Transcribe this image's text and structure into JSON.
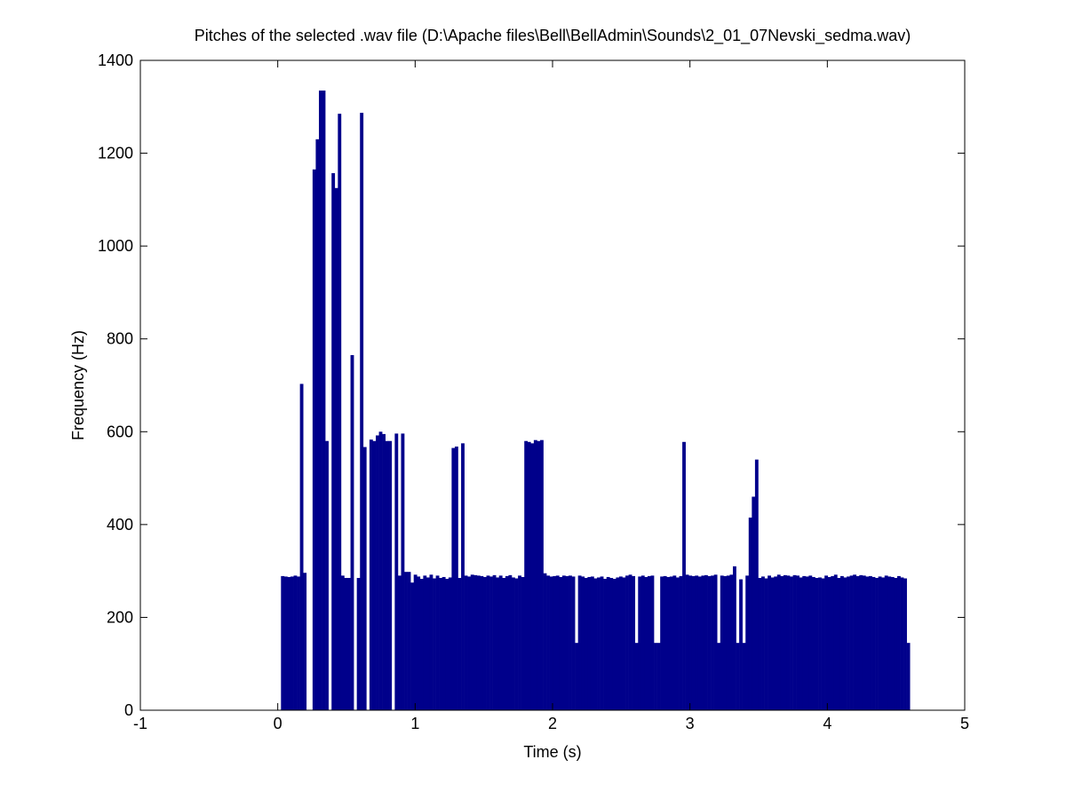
{
  "chart_data": {
    "type": "bar",
    "title": "Pitches of the selected .wav file (D:\\Apache files\\Bell\\BellAdmin\\Sounds\\2_01_07Nevski_sedma.wav)",
    "x_label": "Time (s)",
    "y_label": "Frequency (Hz)",
    "color": "#00008b",
    "xlim": [
      -1,
      5
    ],
    "xticks": [
      -1,
      0,
      1,
      2,
      3,
      4,
      5
    ],
    "ylim": [
      0,
      1400
    ],
    "yticks": [
      0,
      200,
      400,
      600,
      800,
      1000,
      1200,
      1400
    ],
    "x": [
      0.035,
      0.058,
      0.081,
      0.104,
      0.127,
      0.15,
      0.173,
      0.196,
      0.219,
      0.242,
      0.265,
      0.288,
      0.311,
      0.334,
      0.357,
      0.38,
      0.403,
      0.426,
      0.449,
      0.472,
      0.495,
      0.518,
      0.541,
      0.564,
      0.587,
      0.61,
      0.633,
      0.656,
      0.679,
      0.702,
      0.725,
      0.748,
      0.771,
      0.794,
      0.817,
      0.84,
      0.863,
      0.886,
      0.909,
      0.932,
      0.955,
      0.978,
      1.001,
      1.024,
      1.047,
      1.07,
      1.093,
      1.116,
      1.139,
      1.162,
      1.185,
      1.208,
      1.231,
      1.254,
      1.277,
      1.3,
      1.323,
      1.346,
      1.369,
      1.392,
      1.415,
      1.438,
      1.461,
      1.484,
      1.507,
      1.53,
      1.553,
      1.576,
      1.599,
      1.622,
      1.645,
      1.668,
      1.691,
      1.714,
      1.737,
      1.76,
      1.783,
      1.806,
      1.829,
      1.852,
      1.875,
      1.898,
      1.921,
      1.944,
      1.967,
      1.99,
      2.013,
      2.036,
      2.059,
      2.082,
      2.105,
      2.128,
      2.151,
      2.174,
      2.197,
      2.22,
      2.243,
      2.266,
      2.289,
      2.312,
      2.335,
      2.358,
      2.381,
      2.404,
      2.427,
      2.45,
      2.473,
      2.496,
      2.519,
      2.542,
      2.565,
      2.588,
      2.611,
      2.634,
      2.657,
      2.68,
      2.703,
      2.726,
      2.749,
      2.772,
      2.795,
      2.818,
      2.841,
      2.864,
      2.887,
      2.91,
      2.933,
      2.956,
      2.979,
      3.002,
      3.025,
      3.048,
      3.071,
      3.094,
      3.117,
      3.14,
      3.163,
      3.186,
      3.209,
      3.232,
      3.255,
      3.278,
      3.301,
      3.324,
      3.347,
      3.37,
      3.393,
      3.416,
      3.439,
      3.462,
      3.485,
      3.508,
      3.531,
      3.554,
      3.577,
      3.6,
      3.623,
      3.646,
      3.669,
      3.692,
      3.715,
      3.738,
      3.761,
      3.784,
      3.807,
      3.83,
      3.853,
      3.876,
      3.899,
      3.922,
      3.945,
      3.968,
      3.991,
      4.014,
      4.037,
      4.06,
      4.083,
      4.106,
      4.129,
      4.152,
      4.175,
      4.198,
      4.221,
      4.244,
      4.267,
      4.29,
      4.313,
      4.336,
      4.359,
      4.382,
      4.405,
      4.428,
      4.451,
      4.474,
      4.497,
      4.52,
      4.543,
      4.566,
      4.589
    ],
    "values": [
      289,
      288,
      287,
      288,
      290,
      288,
      703,
      296,
      0,
      0,
      1165,
      1230,
      1335,
      1335,
      580,
      0,
      1157,
      1125,
      1285,
      290,
      285,
      285,
      765,
      0,
      285,
      1287,
      567,
      0,
      583,
      580,
      592,
      600,
      595,
      580,
      580,
      0,
      596,
      290,
      596,
      298,
      298,
      275,
      292,
      288,
      283,
      290,
      286,
      292,
      284,
      290,
      285,
      287,
      283,
      286,
      565,
      568,
      285,
      575,
      290,
      288,
      292,
      291,
      290,
      289,
      287,
      290,
      288,
      291,
      286,
      290,
      285,
      289,
      291,
      286,
      284,
      290,
      287,
      580,
      578,
      575,
      582,
      580,
      582,
      295,
      290,
      288,
      289,
      290,
      287,
      290,
      289,
      290,
      288,
      145,
      290,
      288,
      285,
      287,
      288,
      284,
      286,
      288,
      283,
      287,
      285,
      283,
      286,
      288,
      286,
      290,
      292,
      289,
      145,
      288,
      290,
      287,
      289,
      290,
      145,
      145,
      288,
      289,
      287,
      288,
      290,
      286,
      289,
      578,
      292,
      290,
      289,
      290,
      288,
      290,
      291,
      289,
      290,
      292,
      145,
      290,
      289,
      290,
      292,
      310,
      145,
      282,
      145,
      290,
      415,
      460,
      540,
      285,
      288,
      284,
      290,
      286,
      288,
      292,
      289,
      291,
      290,
      288,
      291,
      290,
      286,
      289,
      288,
      290,
      287,
      285,
      286,
      284,
      290,
      287,
      289,
      292,
      285,
      289,
      286,
      288,
      290,
      292,
      289,
      291,
      290,
      288,
      289,
      287,
      285,
      288,
      286,
      290,
      288,
      287,
      285,
      289,
      286,
      284,
      145
    ]
  }
}
